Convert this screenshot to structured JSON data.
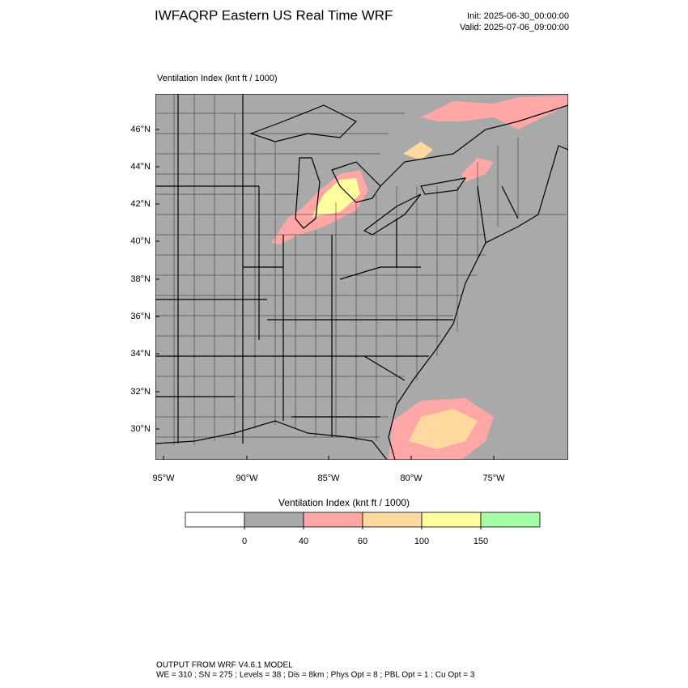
{
  "header": {
    "title": "IWFAQRP Eastern US Real Time WRF",
    "init": "Init: 2025-06-30_00:00:00",
    "valid": "Valid: 2025-07-06_09:00:00"
  },
  "map": {
    "title": "Ventilation Index   (knt ft / 1000)",
    "lat_labels": [
      "46°N",
      "44°N",
      "42°N",
      "40°N",
      "38°N",
      "36°N",
      "34°N",
      "32°N",
      "30°N"
    ],
    "lon_labels": [
      "95°W",
      "90°W",
      "85°W",
      "80°W",
      "75°W"
    ]
  },
  "colorbar": {
    "title": "Ventilation Index  (knt ft / 1000)",
    "colors": [
      "#ffffff",
      "#a9a9a9",
      "#ffa6a6",
      "#ffd8a0",
      "#ffff9e",
      "#a6ffa6"
    ],
    "ticks": [
      0,
      40,
      60,
      100,
      150
    ]
  },
  "footer": {
    "line1": "OUTPUT FROM WRF V4.6.1 MODEL",
    "line2": "WE = 310 ; SN = 275 ; Levels = 38 ; Dis = 8km ; Phys Opt = 8 ; PBL Opt = 1 ; Cu Opt = 3"
  }
}
